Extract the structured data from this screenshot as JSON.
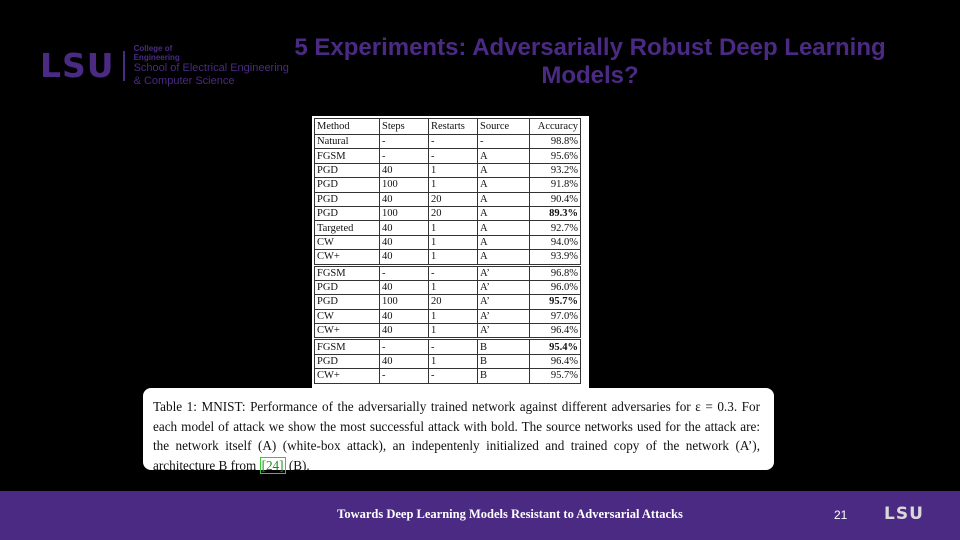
{
  "header": {
    "logo_mark": "LSU",
    "college_line1": "College of",
    "college_line2": "Engineering",
    "school_line1": "School of Electrical Engineering",
    "school_line2": "& Computer Science",
    "title": "5 Experiments: Adversarially Robust Deep Learning Models?"
  },
  "table": {
    "headers": [
      "Method",
      "Steps",
      "Restarts",
      "Source",
      "Accuracy"
    ],
    "groups": [
      [
        {
          "method": "Natural",
          "steps": "-",
          "restarts": "-",
          "source": "-",
          "accuracy": "98.8%",
          "bold": false
        },
        {
          "method": "FGSM",
          "steps": "-",
          "restarts": "-",
          "source": "A",
          "accuracy": "95.6%",
          "bold": false
        },
        {
          "method": "PGD",
          "steps": "40",
          "restarts": "1",
          "source": "A",
          "accuracy": "93.2%",
          "bold": false
        },
        {
          "method": "PGD",
          "steps": "100",
          "restarts": "1",
          "source": "A",
          "accuracy": "91.8%",
          "bold": false
        },
        {
          "method": "PGD",
          "steps": "40",
          "restarts": "20",
          "source": "A",
          "accuracy": "90.4%",
          "bold": false
        },
        {
          "method": "PGD",
          "steps": "100",
          "restarts": "20",
          "source": "A",
          "accuracy": "89.3%",
          "bold": true
        },
        {
          "method": "Targeted",
          "steps": "40",
          "restarts": "1",
          "source": "A",
          "accuracy": "92.7%",
          "bold": false
        },
        {
          "method": "CW",
          "steps": "40",
          "restarts": "1",
          "source": "A",
          "accuracy": "94.0%",
          "bold": false
        },
        {
          "method": "CW+",
          "steps": "40",
          "restarts": "1",
          "source": "A",
          "accuracy": "93.9%",
          "bold": false
        }
      ],
      [
        {
          "method": "FGSM",
          "steps": "-",
          "restarts": "-",
          "source": "A’",
          "accuracy": "96.8%",
          "bold": false
        },
        {
          "method": "PGD",
          "steps": "40",
          "restarts": "1",
          "source": "A’",
          "accuracy": "96.0%",
          "bold": false
        },
        {
          "method": "PGD",
          "steps": "100",
          "restarts": "20",
          "source": "A’",
          "accuracy": "95.7%",
          "bold": true
        },
        {
          "method": "CW",
          "steps": "40",
          "restarts": "1",
          "source": "A’",
          "accuracy": "97.0%",
          "bold": false
        },
        {
          "method": "CW+",
          "steps": "40",
          "restarts": "1",
          "source": "A’",
          "accuracy": "96.4%",
          "bold": false
        }
      ],
      [
        {
          "method": "FGSM",
          "steps": "-",
          "restarts": "-",
          "source": "B",
          "accuracy": "95.4%",
          "bold": true
        },
        {
          "method": "PGD",
          "steps": "40",
          "restarts": "1",
          "source": "B",
          "accuracy": "96.4%",
          "bold": false
        },
        {
          "method": "CW+",
          "steps": "-",
          "restarts": "-",
          "source": "B",
          "accuracy": "95.7%",
          "bold": false
        }
      ]
    ]
  },
  "caption": {
    "part1": "Table 1: MNIST: Performance of the adversarially trained network against different adversaries for ε = 0.3. For each model of attack we show the most successful attack with bold. The source networks used for the attack are: the network itself (A) (white-box attack), an indepentenly initialized and trained copy of the network (A’), architecture B from ",
    "cite": "[24]",
    "part2": " (B)."
  },
  "footer": {
    "text": "Towards Deep Learning Models Resistant to Adversarial Attacks",
    "page_number": "21",
    "logo": "LSU"
  }
}
